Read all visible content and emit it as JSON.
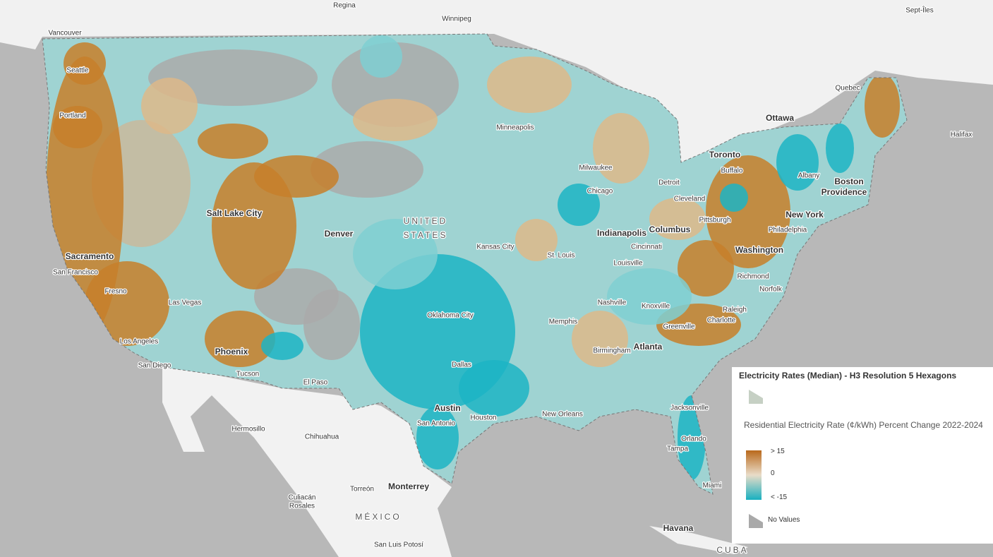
{
  "map": {
    "labels": [
      "Regina",
      "Winnipeg",
      "Sept-Îles",
      "Vancouver",
      "Seattle",
      "Portland",
      "Quebec",
      "Ottawa",
      "Halifax",
      "Minneapolis",
      "Toronto",
      "Buffalo",
      "Albany",
      "Boston",
      "Providence",
      "Milwaukee",
      "Chicago",
      "Detroit",
      "Cleveland",
      "Pittsburgh",
      "New York",
      "Philadelphia",
      "Salt Lake City",
      "Denver",
      "UNITED",
      "STATES",
      "Kansas City",
      "St. Louis",
      "Indianapolis",
      "Columbus",
      "Cincinnati",
      "Louisville",
      "Washington",
      "Richmond",
      "Norfolk",
      "Sacramento",
      "San Francisco",
      "Fresno",
      "Las Vegas",
      "Nashville",
      "Knoxville",
      "Raleigh",
      "Charlotte",
      "Greenville",
      "Memphis",
      "Oklahoma City",
      "Los Angeles",
      "Phoenix",
      "Atlanta",
      "Birmingham",
      "San Diego",
      "Tucson",
      "El Paso",
      "Dallas",
      "Austin",
      "Houston",
      "New Orleans",
      "Jacksonville",
      "San Antonio",
      "Hermosillo",
      "Chihuahua",
      "Orlando",
      "Tampa",
      "Torreón",
      "Monterrey",
      "Miami",
      "Culiacán",
      "Rosales",
      "MÉXICO",
      "Havana",
      "San Luis Potosí",
      "CUBA"
    ]
  },
  "legend": {
    "title": "Electricity Rates (Median) - H3 Resolution 5 Hexagons",
    "field": "Residential Electricity Rate (¢/kWh) Percent Change 2022-2024",
    "high": "> 15",
    "mid": "0",
    "low": "< -15",
    "no_values": "No Values"
  }
}
